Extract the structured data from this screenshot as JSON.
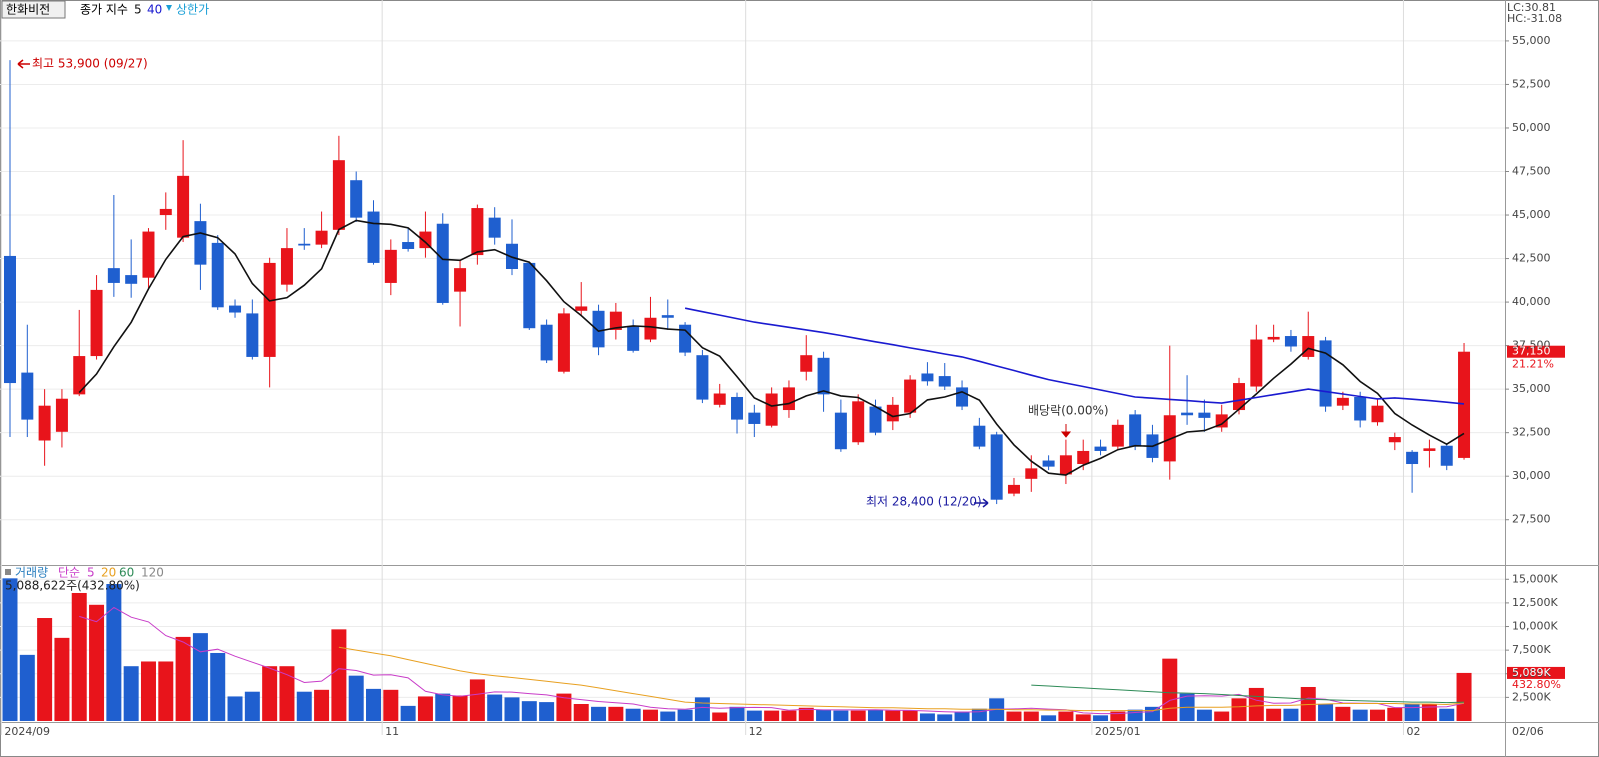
{
  "chart_data": [
    {
      "type": "candlestick",
      "title": "한화비전",
      "legend_prefix": "종가 지수",
      "upper_limit_label": "상한가",
      "lc_label": "LC:30.81",
      "hc_label": "HC:-31.08",
      "high_note": "최고 53,900 (09/27)",
      "low_note": "최저 28,400 (12/20)",
      "event_note": "배당락(0.00%)",
      "last_price": {
        "value": 37150,
        "label": "37,150"
      },
      "change_label": "21.21%",
      "up_color": "#e8141b",
      "down_color": "#1f5fcf",
      "ylim": [
        24900,
        57350
      ],
      "yticks": [
        {
          "value": 27500,
          "label": "27,500"
        },
        {
          "value": 30000,
          "label": "30,000"
        },
        {
          "value": 32500,
          "label": "32,500"
        },
        {
          "value": 35000,
          "label": "35,000"
        },
        {
          "value": 37500,
          "label": "37,500"
        },
        {
          "value": 40000,
          "label": "40,000"
        },
        {
          "value": 42500,
          "label": "42,500"
        },
        {
          "value": 45000,
          "label": "45,000"
        },
        {
          "value": 47500,
          "label": "47,500"
        },
        {
          "value": 50000,
          "label": "50,000"
        },
        {
          "value": 52500,
          "label": "52,500"
        },
        {
          "value": 55000,
          "label": "55,000"
        }
      ],
      "grid": true,
      "open": [
        42650,
        35950,
        32050,
        32550,
        34700,
        36900,
        41950,
        41550,
        41400,
        45000,
        43700,
        44650,
        43400,
        39800,
        39350,
        36850,
        41000,
        43350,
        43300,
        44150,
        47000,
        45200,
        41100,
        43450,
        43100,
        44500,
        40600,
        42700,
        44850,
        43350,
        42250,
        38700,
        36000,
        39500,
        39500,
        38400,
        38600,
        37850,
        39250,
        38700,
        36950,
        34100,
        34550,
        33650,
        32900,
        33800,
        36000,
        36800,
        33650,
        31950,
        34000,
        33150,
        33650,
        35900,
        35750,
        35100,
        32900,
        32400,
        29000,
        29850,
        30900,
        30100,
        30700,
        31700,
        31700,
        33550,
        32400,
        30850,
        33650,
        33650,
        32800,
        33800,
        35150,
        37850,
        38050,
        36850,
        37800,
        34050,
        34550,
        33100,
        31950,
        31400,
        31450,
        31750,
        31050
      ],
      "high": [
        53900,
        38700,
        35000,
        35000,
        39550,
        41550,
        46150,
        43600,
        44250,
        46300,
        49300,
        45650,
        43850,
        40150,
        40150,
        42550,
        44250,
        44250,
        45200,
        49550,
        47500,
        45850,
        43600,
        44250,
        45200,
        45100,
        42450,
        45600,
        45450,
        44750,
        42300,
        39000,
        39650,
        41150,
        39850,
        39950,
        39000,
        40300,
        40150,
        38850,
        37250,
        35300,
        34800,
        34100,
        35100,
        35500,
        38100,
        37150,
        34400,
        34700,
        34400,
        34550,
        35800,
        36550,
        36500,
        35500,
        33350,
        32550,
        29900,
        31200,
        31200,
        32100,
        32100,
        32100,
        33250,
        33800,
        32950,
        37500,
        35800,
        34400,
        34100,
        35650,
        38700,
        38700,
        38400,
        39450,
        38000,
        34850,
        34850,
        34400,
        32500,
        31500,
        32100,
        31900,
        37650
      ],
      "low": [
        32250,
        32250,
        30600,
        31650,
        34600,
        36700,
        40300,
        40250,
        40700,
        44150,
        43450,
        40700,
        39550,
        39100,
        36700,
        35100,
        40600,
        43000,
        43100,
        43850,
        44600,
        42150,
        40400,
        42900,
        42550,
        39850,
        38600,
        42150,
        43300,
        41550,
        38400,
        36500,
        35900,
        39250,
        36950,
        37850,
        37100,
        37700,
        38400,
        36900,
        34200,
        33950,
        32450,
        32250,
        32800,
        33350,
        35500,
        33700,
        31400,
        31800,
        32350,
        32650,
        33350,
        35200,
        34950,
        33800,
        31550,
        28400,
        28850,
        29100,
        30350,
        29550,
        30350,
        31200,
        31500,
        31500,
        30800,
        29800,
        32950,
        32550,
        32550,
        33550,
        34850,
        37700,
        37150,
        36700,
        33700,
        33800,
        32800,
        32900,
        31500,
        29050,
        30500,
        30350,
        30950
      ],
      "close": [
        35350,
        33250,
        34050,
        34450,
        36900,
        40700,
        41100,
        41050,
        44050,
        45350,
        47250,
        42150,
        39700,
        39400,
        36850,
        42250,
        43100,
        43250,
        44100,
        48150,
        44850,
        42250,
        43000,
        43050,
        44050,
        39950,
        41950,
        45400,
        43700,
        41900,
        38500,
        36650,
        39350,
        39750,
        37400,
        39450,
        37200,
        39100,
        39100,
        37100,
        34400,
        34750,
        33250,
        33000,
        34750,
        35100,
        36950,
        34700,
        31550,
        34300,
        32500,
        34100,
        35550,
        35450,
        35150,
        34000,
        31700,
        28650,
        29500,
        30450,
        30550,
        31200,
        31450,
        31450,
        32950,
        31700,
        31050,
        33500,
        33500,
        33350,
        33550,
        35350,
        37850,
        38000,
        37450,
        38050,
        34000,
        34500,
        33200,
        34050,
        32250,
        30700,
        31600,
        30600,
        37150
      ],
      "series": [
        {
          "name": "5",
          "color": "#111111",
          "values": [
            null,
            null,
            null,
            null,
            34800,
            35870,
            37440,
            38840,
            40760,
            42450,
            43760,
            43970,
            43700,
            42770,
            41070,
            40070,
            40260,
            40970,
            41910,
            44170,
            44690,
            44520,
            44470,
            44260,
            43440,
            42460,
            42400,
            42880,
            43010,
            42580,
            42290,
            41230,
            40020,
            39230,
            38330,
            38520,
            38630,
            38580,
            38450,
            38390,
            37380,
            36890,
            35720,
            34500,
            34030,
            34170,
            34610,
            34900,
            34610,
            34520,
            34000,
            33430,
            33600,
            34380,
            34550,
            34850,
            34370,
            32990,
            31800,
            30860,
            30170,
            30070,
            30630,
            31020,
            31520,
            31750,
            31720,
            32130,
            32540,
            32620,
            32990,
            33850,
            34720,
            35620,
            36440,
            37340,
            37070,
            36400,
            35440,
            34760,
            33600,
            32940,
            32360,
            31840,
            32460
          ]
        },
        {
          "name": "40",
          "color": "#1a1ad0",
          "values": [
            null,
            null,
            null,
            null,
            null,
            null,
            null,
            null,
            null,
            null,
            null,
            null,
            null,
            null,
            null,
            null,
            null,
            null,
            null,
            null,
            null,
            null,
            null,
            null,
            null,
            null,
            null,
            null,
            null,
            null,
            null,
            null,
            null,
            null,
            null,
            null,
            null,
            null,
            null,
            39650,
            39450,
            39250,
            39050,
            38850,
            38700,
            38550,
            38400,
            38250,
            38080,
            37900,
            37720,
            37550,
            37370,
            37200,
            37020,
            36850,
            36600,
            36330,
            36070,
            35800,
            35550,
            35350,
            35150,
            34950,
            34750,
            34550,
            34480,
            34410,
            34340,
            34270,
            34200,
            34360,
            34520,
            34680,
            34840,
            35000,
            34860,
            34720,
            34580,
            34440,
            34500,
            34420,
            34340,
            34250,
            34150
          ]
        }
      ]
    },
    {
      "type": "bar",
      "title": "거래량",
      "ma_prefix": "단순",
      "extra_legend": "120",
      "caption": "5,088,622주(432.80%)",
      "last_volume": {
        "value": 5088.622,
        "label": "5,089K"
      },
      "ratio_label": "432.80%",
      "categories": [
        "2024/09",
        null,
        null,
        null,
        null,
        null,
        null,
        null,
        null,
        null,
        null,
        null,
        null,
        null,
        null,
        null,
        null,
        null,
        null,
        null,
        null,
        null,
        "11",
        null,
        null,
        null,
        null,
        null,
        null,
        null,
        null,
        null,
        null,
        null,
        null,
        null,
        null,
        null,
        null,
        null,
        null,
        null,
        null,
        "12",
        null,
        null,
        null,
        null,
        null,
        null,
        null,
        null,
        null,
        null,
        null,
        null,
        null,
        null,
        null,
        null,
        null,
        null,
        null,
        "2025/01",
        null,
        null,
        null,
        null,
        null,
        null,
        null,
        null,
        null,
        null,
        null,
        null,
        null,
        null,
        null,
        null,
        null,
        "02",
        null,
        null,
        null
      ],
      "last_date": "02/06",
      "ylim": [
        0,
        16300
      ],
      "yticks": [
        {
          "value": 2500,
          "label": "2,500K"
        },
        {
          "value": 5000,
          "label": "5,000K"
        },
        {
          "value": 7500,
          "label": "7,500K"
        },
        {
          "value": 10000,
          "label": "10,000K"
        },
        {
          "value": 12500,
          "label": "12,500K"
        },
        {
          "value": 15000,
          "label": "15,000K"
        }
      ],
      "grid": true,
      "values": [
        15100,
        7000,
        10900,
        8800,
        13550,
        12300,
        14500,
        5800,
        6300,
        6300,
        8900,
        9300,
        7200,
        2600,
        3100,
        5800,
        5800,
        3100,
        3300,
        9700,
        4800,
        3400,
        3300,
        1600,
        2600,
        2900,
        2700,
        4400,
        2800,
        2500,
        2100,
        2000,
        2900,
        1800,
        1500,
        1500,
        1300,
        1200,
        1000,
        1200,
        2500,
        900,
        1500,
        1100,
        1100,
        1100,
        1400,
        1200,
        1100,
        1100,
        1200,
        1100,
        1100,
        800,
        700,
        1000,
        1300,
        2400,
        1000,
        1000,
        600,
        1000,
        700,
        600,
        1000,
        1200,
        1500,
        6600,
        2900,
        1200,
        1000,
        2400,
        3500,
        1300,
        1300,
        3600,
        1800,
        1500,
        1200,
        1200,
        1400,
        1800,
        1800,
        1300,
        5088.622
      ],
      "series": [
        {
          "name": "5",
          "color": "#c83cc8",
          "values": [
            null,
            null,
            null,
            null,
            11070,
            10510,
            12010,
            10990,
            10490,
            9040,
            8360,
            7320,
            7600,
            6860,
            6220,
            5600,
            4900,
            4080,
            4220,
            5540,
            5340,
            4860,
            4900,
            4560,
            3140,
            2760,
            2620,
            2840,
            3080,
            3060,
            2900,
            2760,
            2460,
            2260,
            2060,
            1940,
            1800,
            1460,
            1300,
            1240,
            1440,
            1360,
            1420,
            1440,
            1420,
            1140,
            1240,
            1180,
            1180,
            1180,
            1200,
            1140,
            1120,
            1060,
            980,
            940,
            980,
            1240,
            1280,
            1340,
            1260,
            1200,
            860,
            780,
            780,
            900,
            1000,
            2180,
            2640,
            2680,
            2640,
            2820,
            2200,
            1880,
            1900,
            2420,
            2300,
            1900,
            1880,
            1860,
            1420,
            1420,
            1480,
            1500,
            1878
          ]
        },
        {
          "name": "20",
          "color": "#e8a020",
          "values": [
            null,
            null,
            null,
            null,
            null,
            null,
            null,
            null,
            null,
            null,
            null,
            null,
            null,
            null,
            null,
            null,
            null,
            null,
            null,
            7800,
            7500,
            7200,
            6900,
            6500,
            6100,
            5700,
            5300,
            5000,
            4800,
            4600,
            4400,
            4200,
            4000,
            3800,
            3500,
            3200,
            2900,
            2600,
            2300,
            2000,
            1900,
            1850,
            1800,
            1750,
            1700,
            1650,
            1600,
            1550,
            1500,
            1450,
            1400,
            1400,
            1350,
            1300,
            1300,
            1250,
            1250,
            1250,
            1200,
            1200,
            1150,
            1150,
            1100,
            1100,
            1100,
            1100,
            1100,
            1350,
            1450,
            1450,
            1450,
            1500,
            1600,
            1650,
            1650,
            1750,
            1800,
            1850,
            1850,
            1850,
            1850,
            1800,
            1800,
            1750,
            1900
          ]
        },
        {
          "name": "60",
          "color": "#2e8b57",
          "values": [
            null,
            null,
            null,
            null,
            null,
            null,
            null,
            null,
            null,
            null,
            null,
            null,
            null,
            null,
            null,
            null,
            null,
            null,
            null,
            null,
            null,
            null,
            null,
            null,
            null,
            null,
            null,
            null,
            null,
            null,
            null,
            null,
            null,
            null,
            null,
            null,
            null,
            null,
            null,
            null,
            null,
            null,
            null,
            null,
            null,
            null,
            null,
            null,
            null,
            null,
            null,
            null,
            null,
            null,
            null,
            null,
            null,
            null,
            null,
            3800,
            3700,
            3600,
            3500,
            3400,
            3300,
            3200,
            3100,
            3000,
            2950,
            2900,
            2800,
            2700,
            2600,
            2500,
            2400,
            2300,
            2250,
            2200,
            2150,
            2100,
            2050,
            2000,
            2000,
            1950,
            2000
          ]
        }
      ]
    }
  ]
}
